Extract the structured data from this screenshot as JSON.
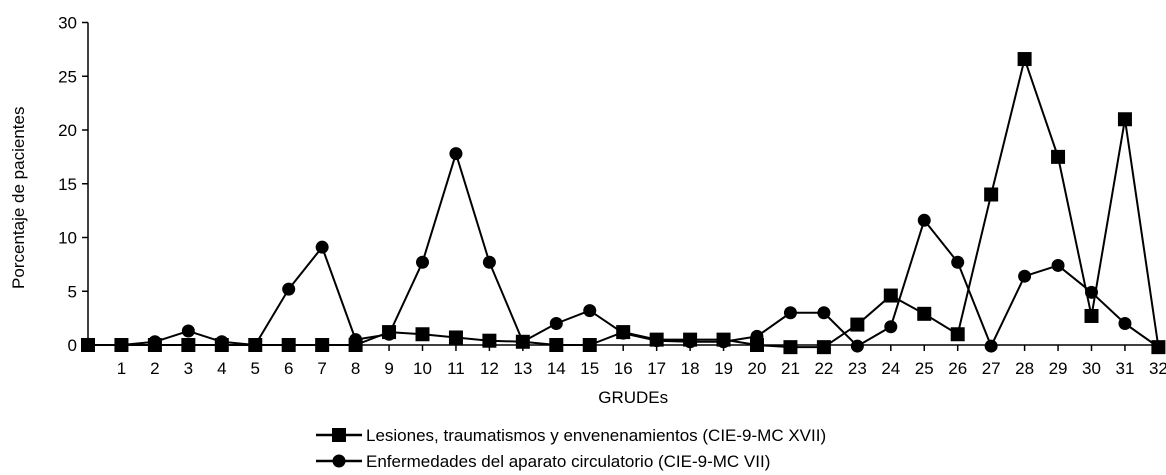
{
  "chart_data": {
    "type": "line",
    "xlabel": "GRUDEs",
    "ylabel": "Porcentaje de pacientes",
    "ylim": [
      0,
      30
    ],
    "yticks": [
      0,
      5,
      10,
      15,
      20,
      25,
      30
    ],
    "x": [
      0,
      1,
      2,
      3,
      4,
      5,
      6,
      7,
      8,
      9,
      10,
      11,
      12,
      13,
      14,
      15,
      16,
      17,
      18,
      19,
      20,
      21,
      22,
      23,
      24,
      25,
      26,
      27,
      28,
      29,
      30,
      31,
      32
    ],
    "xtick_labels": [
      "1",
      "2",
      "3",
      "4",
      "5",
      "6",
      "7",
      "8",
      "9",
      "10",
      "11",
      "12",
      "13",
      "14",
      "15",
      "16",
      "17",
      "18",
      "19",
      "20",
      "21",
      "22",
      "23",
      "24",
      "25",
      "26",
      "27",
      "28",
      "29",
      "30",
      "31",
      "32"
    ],
    "series": [
      {
        "name": "Lesiones, traumatismos y envenenamientos (CIE-9-MC XVII)",
        "marker": "square",
        "values": [
          0,
          0,
          0,
          0,
          0,
          0,
          0,
          0,
          0,
          1.2,
          1.0,
          0.7,
          0.4,
          0.3,
          0,
          0,
          1.2,
          0.5,
          0.5,
          0.5,
          0,
          -0.2,
          -0.2,
          1.9,
          4.6,
          2.9,
          1.0,
          14.0,
          26.6,
          17.5,
          2.7,
          21.0,
          -0.2
        ]
      },
      {
        "name": "Enfermedades del aparato circulatorio (CIE-9-MC VII)",
        "marker": "circle",
        "values": [
          0,
          0,
          0.3,
          1.3,
          0.3,
          0,
          5.2,
          9.1,
          0.5,
          1.0,
          7.7,
          17.8,
          7.7,
          0.3,
          2.0,
          3.2,
          1.1,
          0.4,
          0.3,
          0.3,
          0.8,
          3.0,
          3.0,
          -0.1,
          1.7,
          11.6,
          7.7,
          -0.1,
          6.4,
          7.4,
          4.9,
          2.0,
          -0.2
        ]
      }
    ],
    "grid": false,
    "legend": "bottom-center"
  }
}
